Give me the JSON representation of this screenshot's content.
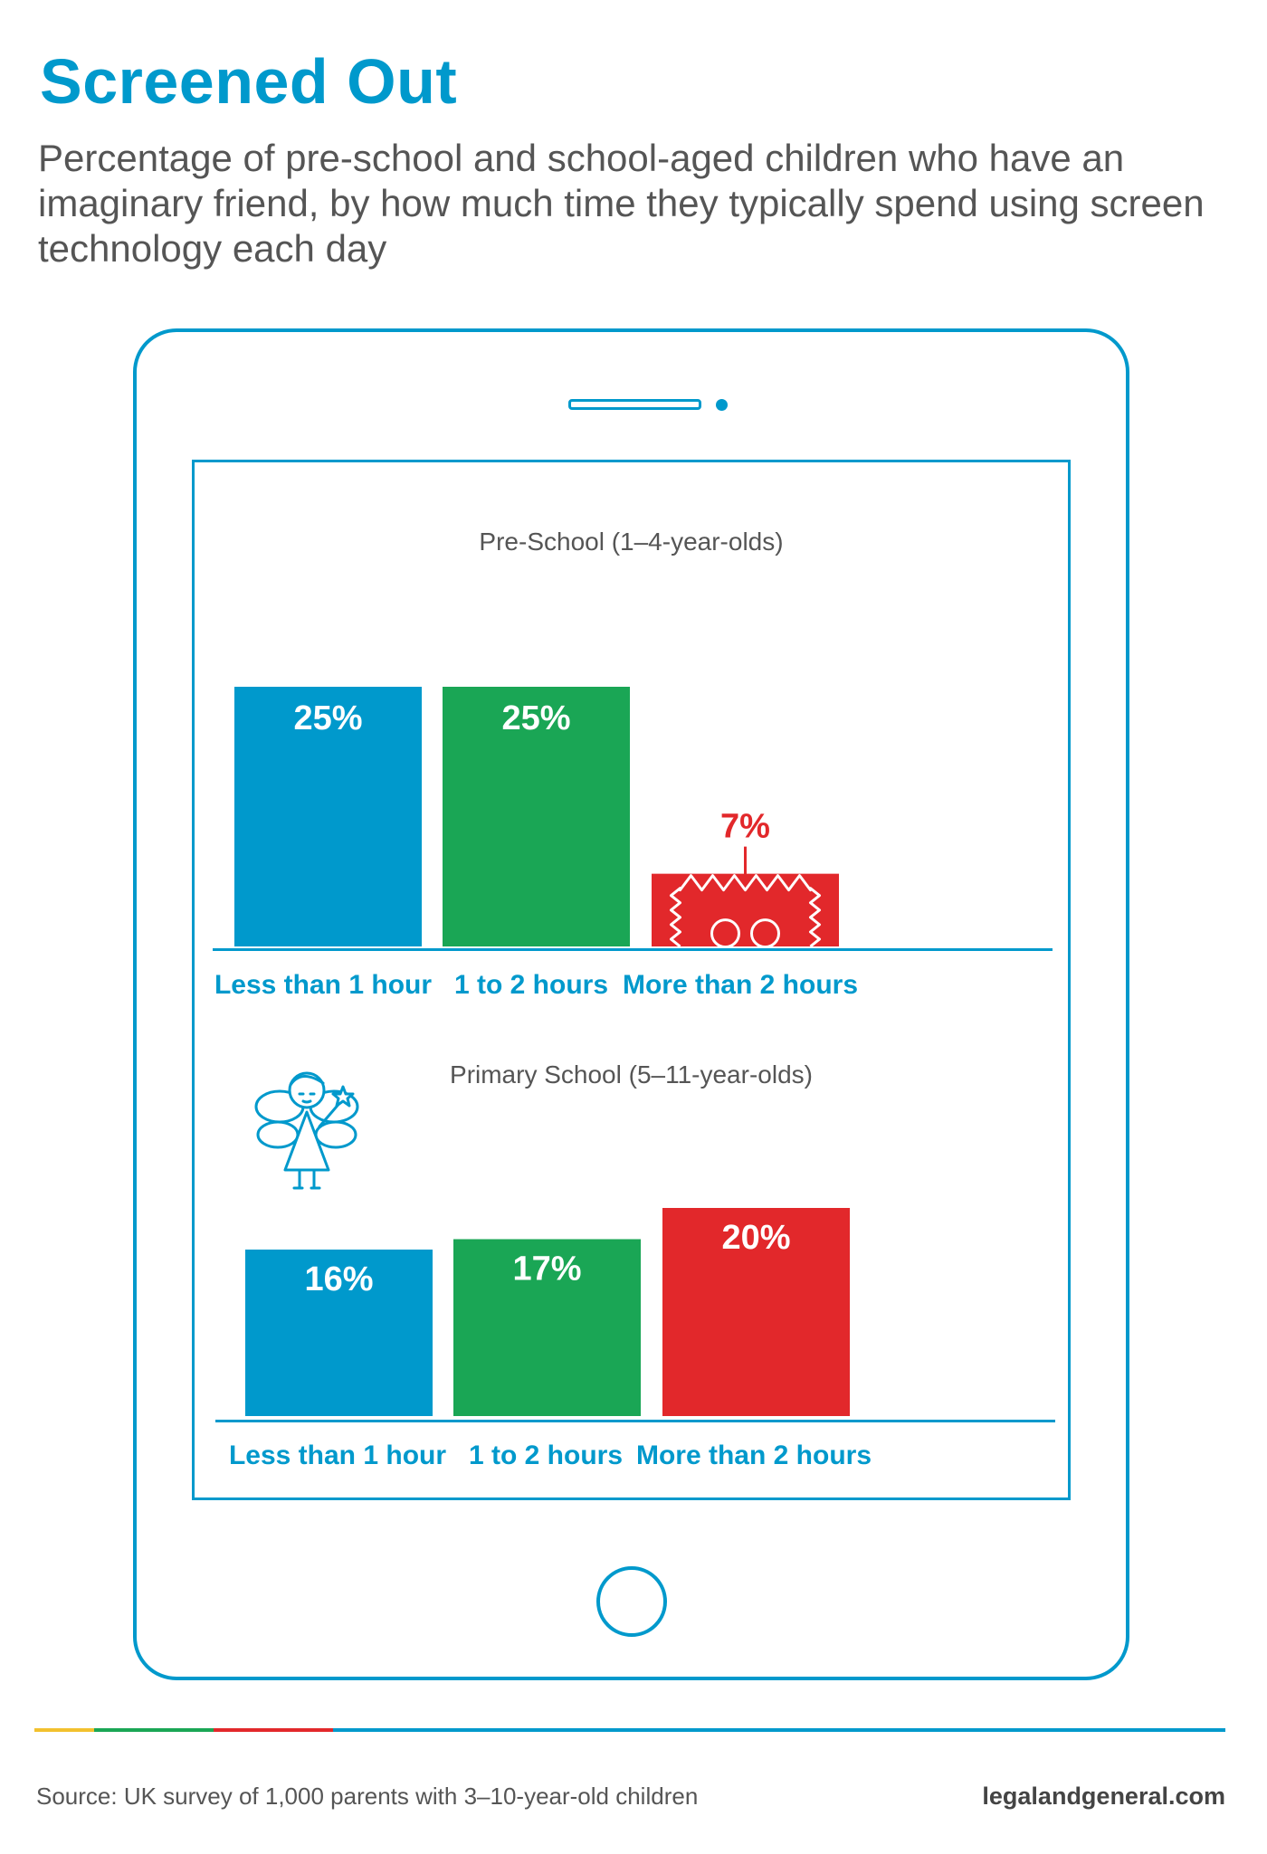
{
  "title": "Screened Out",
  "subtitle": "Percentage of pre-school and school-aged children who have an imaginary friend, by how much time they typically spend using screen technology each day",
  "colors": {
    "accent": "#0099cc",
    "blue": "#0099cc",
    "green": "#1aa655",
    "red": "#e2282b",
    "gold": "#f2c12e",
    "text_grey": "#555555"
  },
  "chart_data": [
    {
      "type": "bar",
      "title": "Pre-School (1–4-year-olds)",
      "categories": [
        "Less than 1 hour",
        "1 to 2 hours",
        "More than 2 hours"
      ],
      "values": [
        25,
        25,
        7
      ],
      "data_labels": [
        "25%",
        "25%",
        "7%"
      ],
      "bar_colors": [
        "#0099cc",
        "#1aa655",
        "#e2282b"
      ],
      "ylim": [
        0,
        25
      ],
      "grid": false,
      "legend": "none"
    },
    {
      "type": "bar",
      "title": "Primary School (5–11-year-olds)",
      "categories": [
        "Less than 1 hour",
        "1 to 2 hours",
        "More than 2 hours"
      ],
      "values": [
        16,
        17,
        20
      ],
      "data_labels": [
        "16%",
        "17%",
        "20%"
      ],
      "bar_colors": [
        "#0099cc",
        "#1aa655",
        "#e2282b"
      ],
      "ylim": [
        0,
        20
      ],
      "grid": false,
      "legend": "none"
    }
  ],
  "illustrations": {
    "monster": "fuzzy-monster-icon",
    "fairy": "fairy-icon"
  },
  "footer": {
    "source": "Source: UK survey of 1,000 parents with 3–10-year-old children",
    "website": "legalandgeneral.com"
  }
}
